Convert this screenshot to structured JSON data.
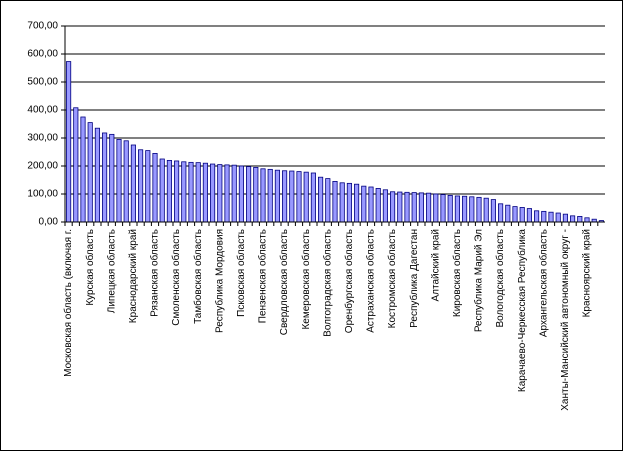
{
  "chart_data": {
    "type": "bar",
    "color": "#9999ff",
    "edge_color": "#000080",
    "grid": true,
    "ylim": [
      0,
      700
    ],
    "yticks": [
      {
        "value": 0,
        "label": "0,00"
      },
      {
        "value": 100,
        "label": "100,00"
      },
      {
        "value": 200,
        "label": "200,00"
      },
      {
        "value": 300,
        "label": "300,00"
      },
      {
        "value": 400,
        "label": "400,00"
      },
      {
        "value": 500,
        "label": "500,00"
      },
      {
        "value": 600,
        "label": "600,00"
      },
      {
        "value": 700,
        "label": "700,00"
      }
    ],
    "categories": [
      "Московская область (включая г.",
      null,
      null,
      "Курская область",
      null,
      null,
      "Липецкая область",
      null,
      null,
      "Краснодарский край",
      null,
      null,
      "Рязанская область",
      null,
      null,
      "Смоленская область",
      null,
      null,
      "Тамбовская область",
      null,
      null,
      "Республика Мордовия",
      null,
      null,
      "Псковская область",
      null,
      null,
      "Пензенская область",
      null,
      null,
      "Свердловская область",
      null,
      null,
      "Кемеровская область",
      null,
      null,
      "Волгоградская область",
      null,
      null,
      "Оренбургская область",
      null,
      null,
      "Астраханская область",
      null,
      null,
      "Костромская область",
      null,
      null,
      "Республика Дагестан",
      null,
      null,
      "Алтайский край",
      null,
      null,
      "Кировская область",
      null,
      null,
      "Республика Марий Эл",
      null,
      null,
      "Вологодская область",
      null,
      null,
      "Карачаево-Черкесская Республика",
      null,
      null,
      "Архангельская область",
      null,
      null,
      "Ханты-Мансийский автономный округ -",
      null,
      null,
      "Красноярский край",
      null,
      null
    ],
    "values": [
      573,
      408,
      375,
      355,
      335,
      318,
      313,
      295,
      290,
      275,
      258,
      255,
      245,
      225,
      220,
      218,
      215,
      213,
      212,
      210,
      207,
      205,
      204,
      203,
      200,
      198,
      195,
      190,
      188,
      185,
      183,
      182,
      180,
      178,
      175,
      160,
      155,
      145,
      140,
      138,
      135,
      128,
      125,
      120,
      115,
      108,
      107,
      106,
      105,
      104,
      103,
      100,
      98,
      95,
      93,
      92,
      90,
      88,
      85,
      80,
      65,
      60,
      55,
      52,
      48,
      40,
      38,
      35,
      32,
      28,
      22,
      20,
      15,
      10,
      5
    ]
  }
}
